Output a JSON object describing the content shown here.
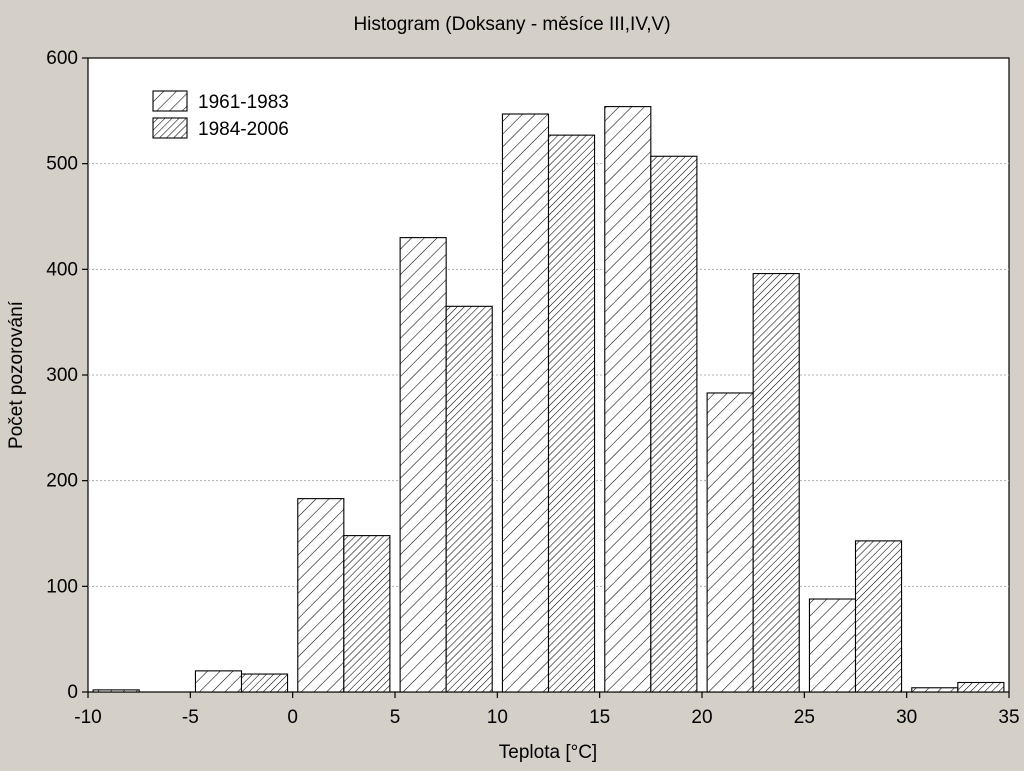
{
  "chart_data": {
    "type": "bar",
    "title": "Histogram (Doksany - měsíce III,IV,V)",
    "xlabel": "Teplota [°C]",
    "ylabel": "Počet pozorování",
    "xlim": [
      -10,
      35
    ],
    "ylim": [
      0,
      600
    ],
    "x_ticks": [
      -10,
      -5,
      0,
      5,
      10,
      15,
      20,
      25,
      30,
      35
    ],
    "y_ticks": [
      0,
      100,
      200,
      300,
      400,
      500,
      600
    ],
    "bins": [
      {
        "from": -10,
        "to": -5
      },
      {
        "from": -5,
        "to": 0
      },
      {
        "from": 0,
        "to": 5
      },
      {
        "from": 5,
        "to": 10
      },
      {
        "from": 10,
        "to": 15
      },
      {
        "from": 15,
        "to": 20
      },
      {
        "from": 20,
        "to": 25
      },
      {
        "from": 25,
        "to": 30
      },
      {
        "from": 30,
        "to": 35
      }
    ],
    "series": [
      {
        "name": "1961-1983",
        "values": [
          2,
          20,
          183,
          430,
          547,
          554,
          283,
          88,
          4
        ]
      },
      {
        "name": "1984-2006",
        "values": [
          0,
          17,
          148,
          365,
          527,
          507,
          396,
          143,
          9
        ]
      }
    ],
    "grid": true,
    "legend_position": "top-left"
  },
  "colors": {
    "background": "#d4d0c8",
    "plot_background": "#ffffff",
    "bar_fill": "#ffffff",
    "hatch": "#000000",
    "grid": "#b0b0b0"
  }
}
